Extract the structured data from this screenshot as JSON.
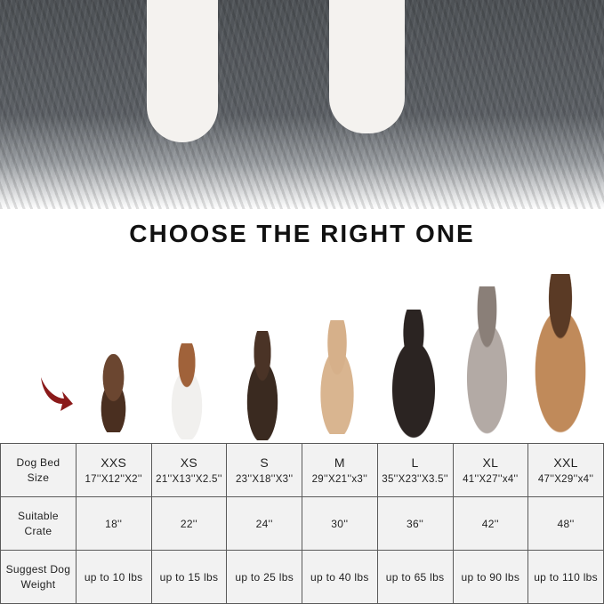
{
  "title": "CHOOSE THE RIGHT ONE",
  "table": {
    "row_labels": [
      "Dog Bed Size",
      "Suitable Crate",
      "Suggest Dog Weight"
    ],
    "columns": [
      {
        "size": "XXS",
        "dims": "17''X12''X2''",
        "crate": "18''",
        "weight": "up to 10 lbs"
      },
      {
        "size": "XS",
        "dims": "21''X13''X2.5''",
        "crate": "22''",
        "weight": "up to 15 lbs"
      },
      {
        "size": "S",
        "dims": "23''X18''X3''",
        "crate": "24''",
        "weight": "up to 25 lbs"
      },
      {
        "size": "M",
        "dims": "29''X21''x3''",
        "crate": "30''",
        "weight": "up to 40 lbs"
      },
      {
        "size": "L",
        "dims": "35''X23''X3.5''",
        "crate": "36''",
        "weight": "up to 65 lbs"
      },
      {
        "size": "XL",
        "dims": "41''X27''x4''",
        "crate": "42''",
        "weight": "up to 90 lbs"
      },
      {
        "size": "XXL",
        "dims": "47''X29''x4''",
        "crate": "48''",
        "weight": "up to 110 lbs"
      }
    ]
  },
  "colors": {
    "fur": "#5d6166",
    "arrow": "#8b1a1a",
    "table_bg": "#f2f2f2"
  }
}
